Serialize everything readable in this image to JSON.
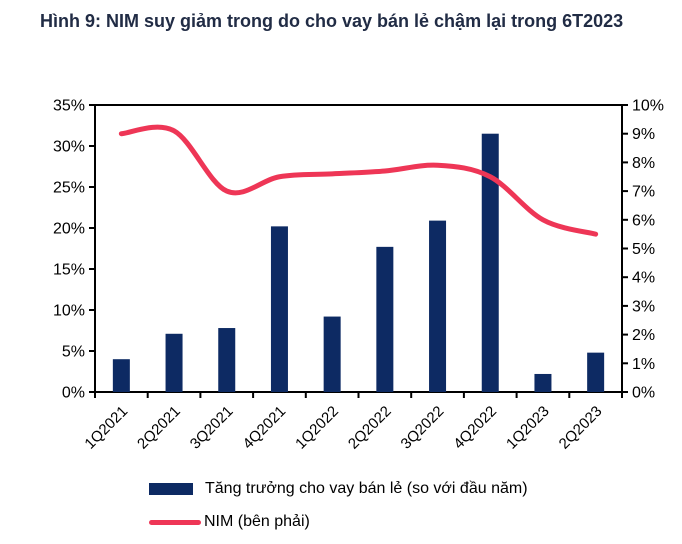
{
  "figure": {
    "title": "Hình 9: NIM suy giảm trong do cho vay bán lẻ chậm lại trong 6T2023"
  },
  "colors": {
    "bar": "#0d2a63",
    "line": "#ee3656",
    "title": "#212c45",
    "axis": "#000000"
  },
  "chart_data": {
    "type": "bar",
    "title": "Hình 9: NIM suy giảm trong do cho vay bán lẻ chậm lại trong 6T2023",
    "categories": [
      "1Q2021",
      "2Q2021",
      "3Q2021",
      "4Q2021",
      "1Q2022",
      "2Q2022",
      "3Q2022",
      "4Q2022",
      "1Q2023",
      "2Q2023"
    ],
    "series": [
      {
        "name": "Tăng trưởng cho vay bán lẻ (so với đầu năm)",
        "type": "bar",
        "axis": "left",
        "color": "#0d2a63",
        "values": [
          4.0,
          7.1,
          7.8,
          20.2,
          9.2,
          17.7,
          20.9,
          31.5,
          2.2,
          4.8
        ]
      },
      {
        "name": "NIM (bên phải)",
        "type": "line",
        "axis": "right",
        "color": "#ee3656",
        "values": [
          9.0,
          9.1,
          7.0,
          7.5,
          7.6,
          7.7,
          7.9,
          7.5,
          6.0,
          5.5
        ]
      }
    ],
    "left_axis": {
      "min": 0,
      "max": 35,
      "step": 5,
      "tick_labels": [
        "0%",
        "5%",
        "10%",
        "15%",
        "20%",
        "25%",
        "30%",
        "35%"
      ]
    },
    "right_axis": {
      "min": 0,
      "max": 10,
      "step": 1,
      "tick_labels": [
        "0%",
        "1%",
        "2%",
        "3%",
        "4%",
        "5%",
        "6%",
        "7%",
        "8%",
        "9%",
        "10%"
      ]
    },
    "grid": false,
    "legend_position": "bottom",
    "xlabel": "",
    "ylabel": ""
  }
}
